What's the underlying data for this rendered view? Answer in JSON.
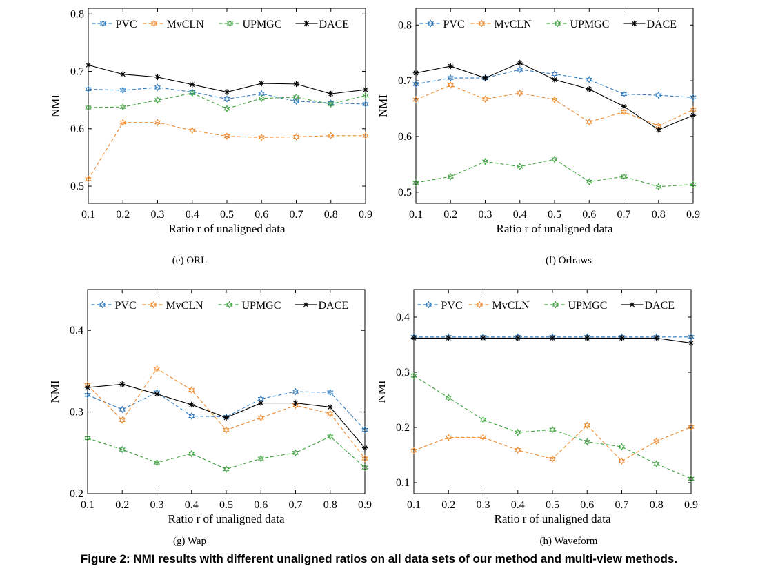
{
  "figure_caption": "Figure 2: NMI results with different unaligned ratios on all data sets of our method and multi-view methods.",
  "colors": {
    "PVC": "#2f7bbf",
    "MvCLN": "#ee8a2e",
    "UPMGC": "#3fa23f",
    "DACE": "#000000"
  },
  "chart_data": [
    {
      "type": "line",
      "caption": "(e)  ORL",
      "xlabel": "Ratio r of unaligned data",
      "ylabel": "NMI",
      "x": [
        0.1,
        0.2,
        0.3,
        0.4,
        0.5,
        0.6,
        0.7,
        0.8,
        0.9
      ],
      "xlim": [
        0.1,
        0.9
      ],
      "ylim": [
        0.47,
        0.81
      ],
      "yticks": [
        0.5,
        0.6,
        0.7,
        0.8
      ],
      "ytick_labels": [
        "0.5",
        "0.6",
        "0.7",
        "0.8"
      ],
      "legend_position": "top",
      "grid": false,
      "series": [
        {
          "name": "PVC",
          "values": [
            0.669,
            0.667,
            0.672,
            0.664,
            0.652,
            0.661,
            0.648,
            0.645,
            0.643
          ]
        },
        {
          "name": "MvCLN",
          "values": [
            0.512,
            0.611,
            0.611,
            0.597,
            0.587,
            0.585,
            0.586,
            0.588,
            0.588
          ]
        },
        {
          "name": "UPMGC",
          "values": [
            0.637,
            0.638,
            0.65,
            0.662,
            0.635,
            0.653,
            0.655,
            0.643,
            0.658
          ]
        },
        {
          "name": "DACE",
          "values": [
            0.711,
            0.695,
            0.69,
            0.677,
            0.664,
            0.679,
            0.678,
            0.661,
            0.668
          ]
        }
      ]
    },
    {
      "type": "line",
      "caption": "(f)  Orlraws",
      "xlabel": "Ratio r of unaligned data",
      "ylabel": "NMI",
      "x": [
        0.1,
        0.2,
        0.3,
        0.4,
        0.5,
        0.6,
        0.7,
        0.8,
        0.9
      ],
      "xlim": [
        0.1,
        0.9
      ],
      "ylim": [
        0.48,
        0.83
      ],
      "yticks": [
        0.5,
        0.6,
        0.7,
        0.8
      ],
      "ytick_labels": [
        "0.5",
        "0.6",
        "0.7",
        "0.8"
      ],
      "legend_position": "top",
      "grid": false,
      "series": [
        {
          "name": "PVC",
          "values": [
            0.694,
            0.705,
            0.705,
            0.72,
            0.712,
            0.702,
            0.676,
            0.674,
            0.67
          ]
        },
        {
          "name": "MvCLN",
          "values": [
            0.666,
            0.692,
            0.667,
            0.678,
            0.666,
            0.626,
            0.644,
            0.619,
            0.648
          ]
        },
        {
          "name": "UPMGC",
          "values": [
            0.517,
            0.528,
            0.555,
            0.546,
            0.559,
            0.519,
            0.528,
            0.51,
            0.514
          ]
        },
        {
          "name": "DACE",
          "values": [
            0.714,
            0.726,
            0.705,
            0.732,
            0.702,
            0.685,
            0.654,
            0.612,
            0.638
          ]
        }
      ]
    },
    {
      "type": "line",
      "caption": "(g)  Wap",
      "xlabel": "Ratio r of unaligned data",
      "ylabel": "NMI",
      "x": [
        0.1,
        0.2,
        0.3,
        0.4,
        0.5,
        0.6,
        0.7,
        0.8,
        0.9
      ],
      "xlim": [
        0.1,
        0.9
      ],
      "ylim": [
        0.2,
        0.45
      ],
      "yticks": [
        0.2,
        0.3,
        0.4
      ],
      "ytick_labels": [
        "0.2",
        "0.3",
        "0.4"
      ],
      "legend_position": "top",
      "grid": false,
      "series": [
        {
          "name": "PVC",
          "values": [
            0.321,
            0.303,
            0.324,
            0.295,
            0.294,
            0.316,
            0.325,
            0.324,
            0.278
          ]
        },
        {
          "name": "MvCLN",
          "values": [
            0.333,
            0.29,
            0.353,
            0.327,
            0.278,
            0.293,
            0.308,
            0.298,
            0.243
          ]
        },
        {
          "name": "UPMGC",
          "values": [
            0.268,
            0.254,
            0.238,
            0.249,
            0.23,
            0.243,
            0.25,
            0.27,
            0.232
          ]
        },
        {
          "name": "DACE",
          "values": [
            0.33,
            0.334,
            0.322,
            0.309,
            0.293,
            0.311,
            0.311,
            0.306,
            0.256
          ]
        }
      ]
    },
    {
      "type": "line",
      "caption": "(h)  Waveform",
      "xlabel": "Ratio r of unaligned data",
      "ylabel": "NMI",
      "x": [
        0.1,
        0.2,
        0.3,
        0.4,
        0.5,
        0.6,
        0.7,
        0.8,
        0.9
      ],
      "xlim": [
        0.1,
        0.9
      ],
      "ylim": [
        0.08,
        0.45
      ],
      "yticks": [
        0.1,
        0.2,
        0.3,
        0.4
      ],
      "ytick_labels": [
        "0.1",
        "0.2",
        "0.3",
        "0.4"
      ],
      "legend_position": "top",
      "grid": false,
      "series": [
        {
          "name": "PVC",
          "values": [
            0.364,
            0.364,
            0.364,
            0.364,
            0.364,
            0.364,
            0.364,
            0.364,
            0.364
          ]
        },
        {
          "name": "MvCLN",
          "values": [
            0.158,
            0.182,
            0.182,
            0.159,
            0.143,
            0.204,
            0.139,
            0.175,
            0.201
          ]
        },
        {
          "name": "UPMGC",
          "values": [
            0.294,
            0.254,
            0.214,
            0.191,
            0.196,
            0.174,
            0.165,
            0.134,
            0.107
          ]
        },
        {
          "name": "DACE",
          "values": [
            0.362,
            0.362,
            0.362,
            0.362,
            0.362,
            0.362,
            0.362,
            0.362,
            0.353
          ]
        }
      ]
    }
  ]
}
